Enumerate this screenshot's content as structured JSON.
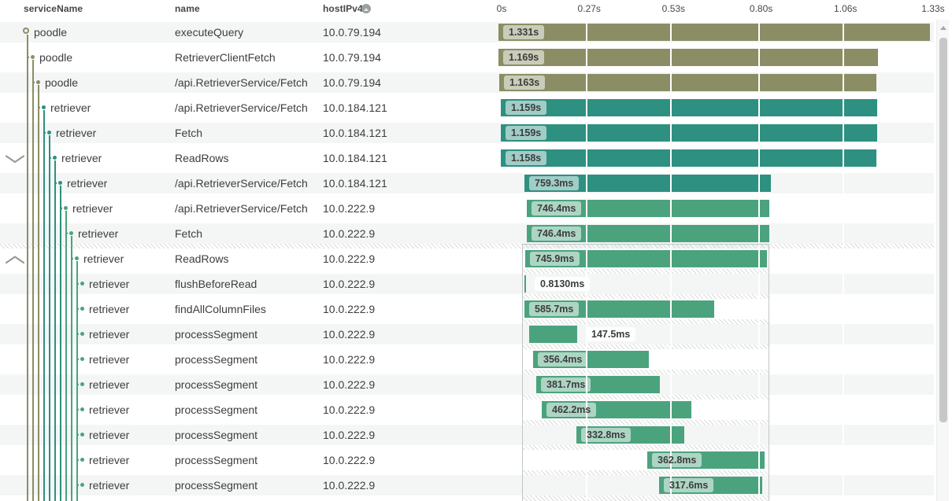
{
  "header": {
    "columns": [
      {
        "key": "service",
        "label": "serviceName"
      },
      {
        "key": "name",
        "label": "name"
      },
      {
        "key": "host",
        "label": "hostIPv4"
      }
    ]
  },
  "axis": {
    "ticks": [
      {
        "label": "0s",
        "seconds": 0
      },
      {
        "label": "0.27s",
        "seconds": 0.27
      },
      {
        "label": "0.53s",
        "seconds": 0.53
      },
      {
        "label": "0.80s",
        "seconds": 0.8
      },
      {
        "label": "1.06s",
        "seconds": 1.06
      },
      {
        "label": "1.33s",
        "seconds": 1.33
      }
    ]
  },
  "colors": {
    "olive": "#8B8E64",
    "teal": "#2E9080",
    "green": "#4BA37D",
    "row_stripe": "#F4F6F6",
    "badge_text": "#3C3C3C",
    "chevron": "#999999"
  },
  "rows": [
    {
      "service": "poodle",
      "name": "executeQuery",
      "host": "10.0.79.194",
      "depth": 1,
      "color": "olive",
      "start_s": 0,
      "dur_s": 1.331,
      "duration_label": "1.331s",
      "label_outside": false
    },
    {
      "service": "poodle",
      "name": "RetrieverClientFetch",
      "host": "10.0.79.194",
      "depth": 2,
      "color": "olive",
      "start_s": 0,
      "dur_s": 1.169,
      "duration_label": "1.169s",
      "label_outside": false
    },
    {
      "service": "poodle",
      "name": "/api.RetrieverService/Fetch",
      "host": "10.0.79.194",
      "depth": 3,
      "color": "olive",
      "start_s": 0.002,
      "dur_s": 1.163,
      "duration_label": "1.163s",
      "label_outside": false
    },
    {
      "service": "retriever",
      "name": "/api.RetrieverService/Fetch",
      "host": "10.0.184.121",
      "depth": 4,
      "color": "teal",
      "start_s": 0.007,
      "dur_s": 1.159,
      "duration_label": "1.159s",
      "label_outside": false
    },
    {
      "service": "retriever",
      "name": "Fetch",
      "host": "10.0.184.121",
      "depth": 5,
      "color": "teal",
      "start_s": 0.007,
      "dur_s": 1.159,
      "duration_label": "1.159s",
      "label_outside": false
    },
    {
      "service": "retriever",
      "name": "ReadRows",
      "host": "10.0.184.121",
      "depth": 6,
      "color": "teal",
      "start_s": 0.007,
      "dur_s": 1.158,
      "duration_label": "1.158s",
      "label_outside": false
    },
    {
      "service": "retriever",
      "name": "/api.RetrieverService/Fetch",
      "host": "10.0.184.121",
      "depth": 7,
      "color": "teal",
      "start_s": 0.08,
      "dur_s": 0.7593,
      "duration_label": "759.3ms",
      "label_outside": false
    },
    {
      "service": "retriever",
      "name": "/api.RetrieverService/Fetch",
      "host": "10.0.222.9",
      "depth": 8,
      "color": "green",
      "start_s": 0.087,
      "dur_s": 0.7464,
      "duration_label": "746.4ms",
      "label_outside": false
    },
    {
      "service": "retriever",
      "name": "Fetch",
      "host": "10.0.222.9",
      "depth": 9,
      "color": "green",
      "start_s": 0.087,
      "dur_s": 0.7464,
      "duration_label": "746.4ms",
      "label_outside": false
    },
    {
      "service": "retriever",
      "name": "ReadRows",
      "host": "10.0.222.9",
      "depth": 10,
      "color": "green",
      "start_s": 0.083,
      "dur_s": 0.7459,
      "duration_label": "745.9ms",
      "label_outside": false
    },
    {
      "service": "retriever",
      "name": "flushBeforeRead",
      "host": "10.0.222.9",
      "depth": 11,
      "color": "green",
      "start_s": 0.08,
      "dur_s": 0.000813,
      "duration_label": "0.8130ms",
      "label_outside": true
    },
    {
      "service": "retriever",
      "name": "findAllColumnFiles",
      "host": "10.0.222.9",
      "depth": 11,
      "color": "green",
      "start_s": 0.08,
      "dur_s": 0.5857,
      "duration_label": "585.7ms",
      "label_outside": false
    },
    {
      "service": "retriever",
      "name": "processSegment",
      "host": "10.0.222.9",
      "depth": 11,
      "color": "green",
      "start_s": 0.094,
      "dur_s": 0.1475,
      "duration_label": "147.5ms",
      "label_outside": true
    },
    {
      "service": "retriever",
      "name": "processSegment",
      "host": "10.0.222.9",
      "depth": 11,
      "color": "green",
      "start_s": 0.107,
      "dur_s": 0.3564,
      "duration_label": "356.4ms",
      "label_outside": false
    },
    {
      "service": "retriever",
      "name": "processSegment",
      "host": "10.0.222.9",
      "depth": 11,
      "color": "green",
      "start_s": 0.117,
      "dur_s": 0.3817,
      "duration_label": "381.7ms",
      "label_outside": false
    },
    {
      "service": "retriever",
      "name": "processSegment",
      "host": "10.0.222.9",
      "depth": 11,
      "color": "green",
      "start_s": 0.133,
      "dur_s": 0.4622,
      "duration_label": "462.2ms",
      "label_outside": false
    },
    {
      "service": "retriever",
      "name": "processSegment",
      "host": "10.0.222.9",
      "depth": 11,
      "color": "green",
      "start_s": 0.24,
      "dur_s": 0.3328,
      "duration_label": "332.8ms",
      "label_outside": false
    },
    {
      "service": "retriever",
      "name": "processSegment",
      "host": "10.0.222.9",
      "depth": 11,
      "color": "green",
      "start_s": 0.459,
      "dur_s": 0.3628,
      "duration_label": "362.8ms",
      "label_outside": false
    },
    {
      "service": "retriever",
      "name": "processSegment",
      "host": "10.0.222.9",
      "depth": 11,
      "color": "green",
      "start_s": 0.495,
      "dur_s": 0.3176,
      "duration_label": "317.6ms",
      "label_outside": false
    }
  ],
  "tree": {
    "collapse_chevrons": [
      {
        "row": 6,
        "direction": "down"
      },
      {
        "row": 10,
        "direction": "up"
      }
    ]
  },
  "selection_overlay": {
    "start_s": 0.072,
    "end_s": 0.835,
    "top_row": 10
  }
}
